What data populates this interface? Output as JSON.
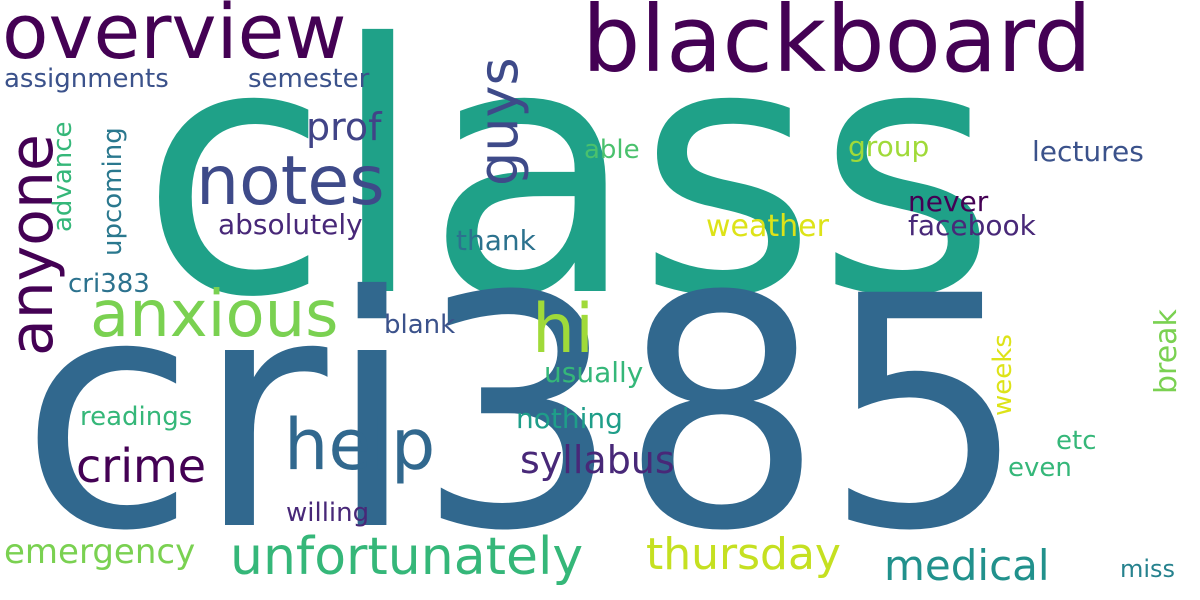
{
  "words": [
    {
      "text": "class",
      "color": "#1fa188"
    },
    {
      "text": "cri385",
      "color": "#31688e"
    },
    {
      "text": "blackboard",
      "color": "#440154"
    },
    {
      "text": "overview",
      "color": "#440154"
    },
    {
      "text": "anyone",
      "color": "#440154"
    },
    {
      "text": "notes",
      "color": "#3e4a89"
    },
    {
      "text": "guys",
      "color": "#3e4a89"
    },
    {
      "text": "anxious",
      "color": "#7ad151"
    },
    {
      "text": "hi",
      "color": "#a0da39"
    },
    {
      "text": "help",
      "color": "#31688e"
    },
    {
      "text": "crime",
      "color": "#440154"
    },
    {
      "text": "unfortunately",
      "color": "#35b779"
    },
    {
      "text": "thursday",
      "color": "#c5e021"
    },
    {
      "text": "emergency",
      "color": "#7ad151"
    },
    {
      "text": "medical",
      "color": "#21918c"
    },
    {
      "text": "syllabus",
      "color": "#482878"
    },
    {
      "text": "prof",
      "color": "#414487"
    },
    {
      "text": "assignments",
      "color": "#3b528b"
    },
    {
      "text": "semester",
      "color": "#3b528b"
    },
    {
      "text": "advance",
      "color": "#35b779"
    },
    {
      "text": "upcoming",
      "color": "#2a788e"
    },
    {
      "text": "able",
      "color": "#4ac16d"
    },
    {
      "text": "group",
      "color": "#a0da39"
    },
    {
      "text": "lectures",
      "color": "#3b528b"
    },
    {
      "text": "never",
      "color": "#440154"
    },
    {
      "text": "facebook",
      "color": "#482878"
    },
    {
      "text": "absolutely",
      "color": "#482878"
    },
    {
      "text": "weather",
      "color": "#dde318"
    },
    {
      "text": "thank",
      "color": "#2c728e"
    },
    {
      "text": "cri383",
      "color": "#2c728e"
    },
    {
      "text": "blank",
      "color": "#3b528b"
    },
    {
      "text": "break",
      "color": "#7ad151"
    },
    {
      "text": "usually",
      "color": "#35b779"
    },
    {
      "text": "weeks",
      "color": "#dde318"
    },
    {
      "text": "readings",
      "color": "#35b779"
    },
    {
      "text": "nothing",
      "color": "#1f9e89"
    },
    {
      "text": "etc",
      "color": "#35b779"
    },
    {
      "text": "even",
      "color": "#35b779"
    },
    {
      "text": "willing",
      "color": "#482878"
    },
    {
      "text": "miss",
      "color": "#26828e"
    }
  ]
}
